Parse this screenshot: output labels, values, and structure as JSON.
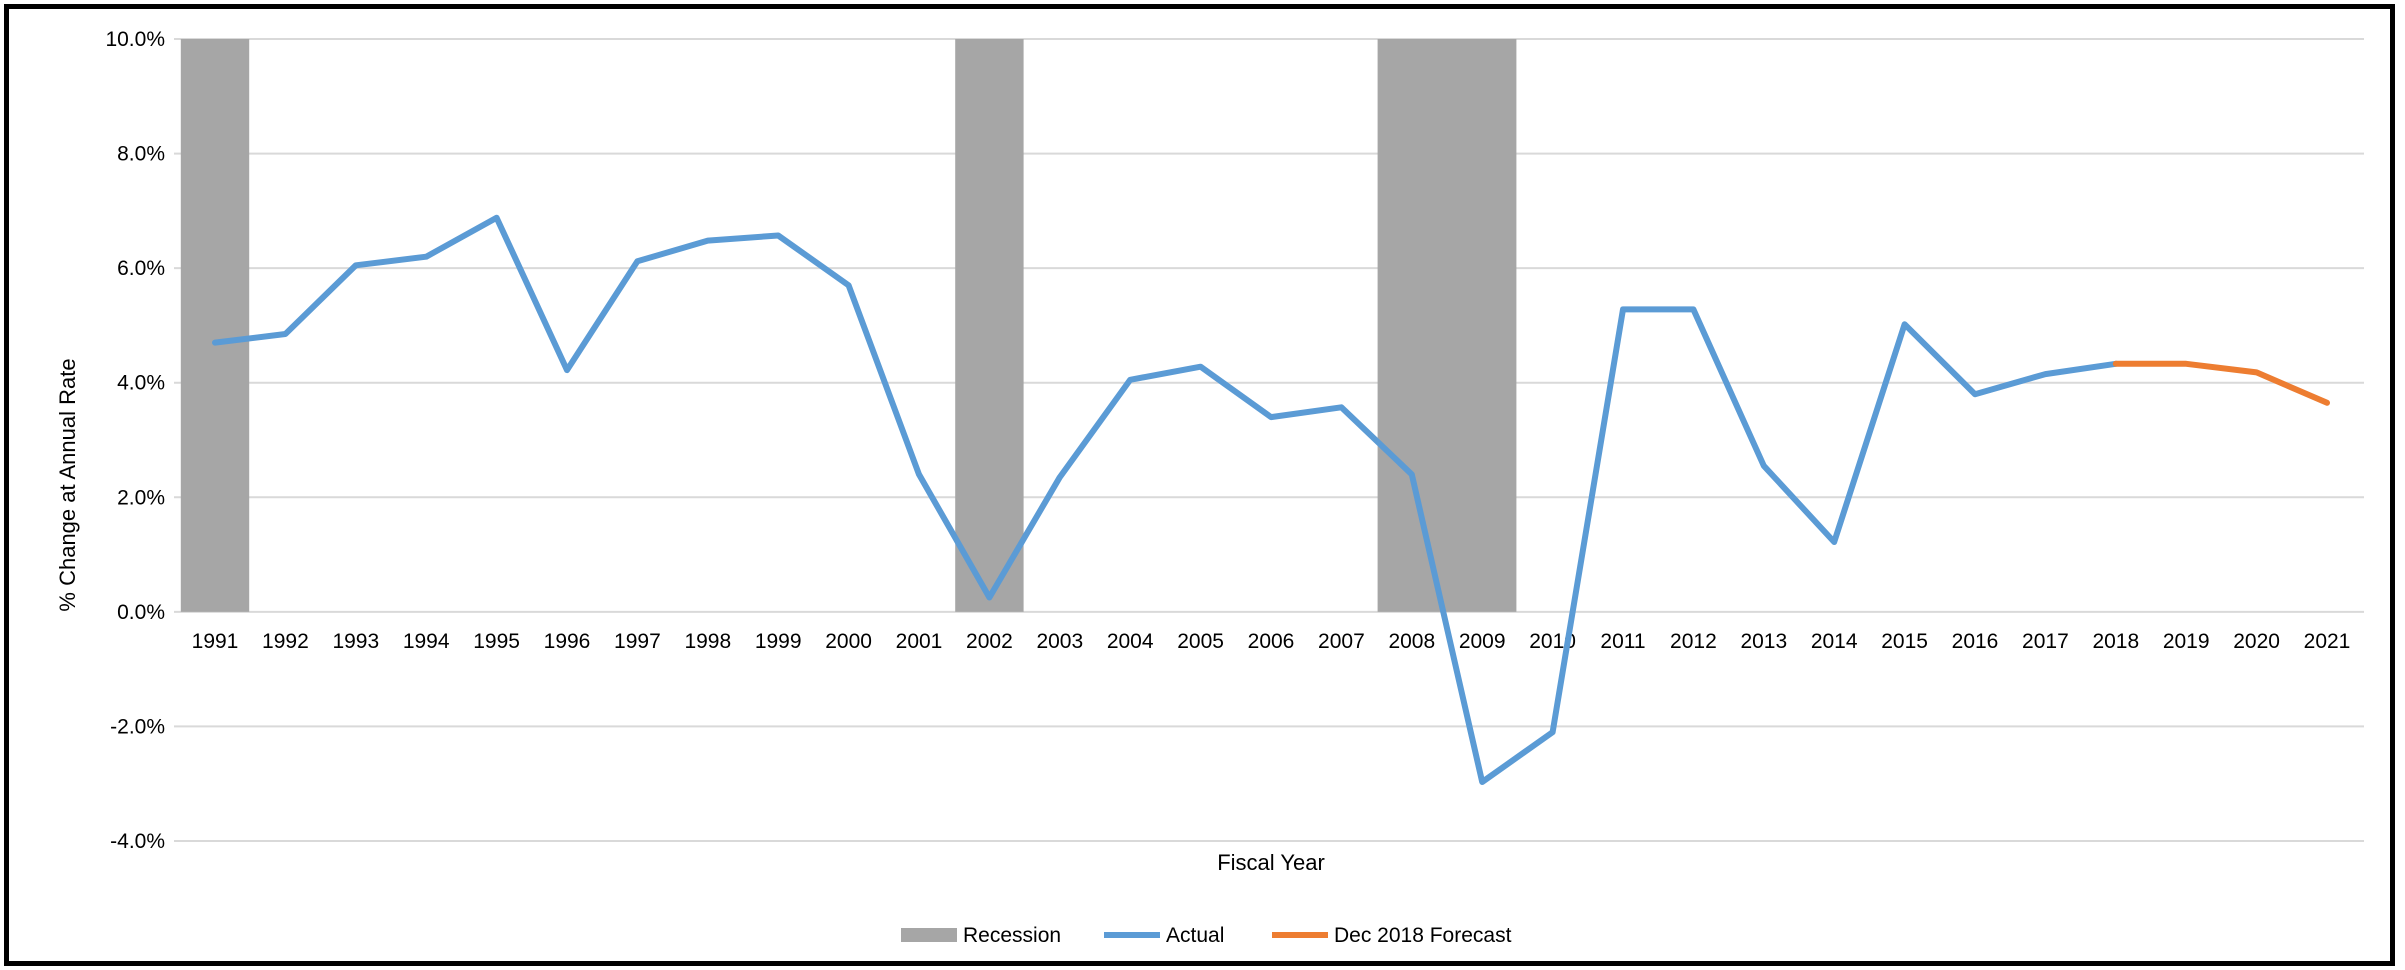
{
  "chart_data": {
    "type": "line",
    "title": "",
    "xlabel": "Fiscal Year",
    "ylabel": "% Change at Annual Rate",
    "ylim": [
      -4.0,
      10.0
    ],
    "y_tick_step": 2.0,
    "y_tick_labels": [
      "-4.0%",
      "-2.0%",
      "0.0%",
      "2.0%",
      "4.0%",
      "6.0%",
      "8.0%",
      "10.0%"
    ],
    "categories": [
      "1991",
      "1992",
      "1993",
      "1994",
      "1995",
      "1996",
      "1997",
      "1998",
      "1999",
      "2000",
      "2001",
      "2002",
      "2003",
      "2004",
      "2005",
      "2006",
      "2007",
      "2008",
      "2009",
      "2010",
      "2011",
      "2012",
      "2013",
      "2014",
      "2015",
      "2016",
      "2017",
      "2018",
      "2019",
      "2020",
      "2021"
    ],
    "grid": true,
    "legend_position": "bottom",
    "recession": {
      "name": "Recession",
      "color": "#a6a6a6",
      "periods": [
        {
          "start": "1991",
          "end": "1991"
        },
        {
          "start": "2002",
          "end": "2002"
        },
        {
          "start": "2008",
          "end": "2009"
        }
      ]
    },
    "series": [
      {
        "name": "Actual",
        "color": "#5b9bd5",
        "x": [
          "1991",
          "1992",
          "1993",
          "1994",
          "1995",
          "1996",
          "1997",
          "1998",
          "1999",
          "2000",
          "2001",
          "2002",
          "2003",
          "2004",
          "2005",
          "2006",
          "2007",
          "2008",
          "2009",
          "2010",
          "2011",
          "2012",
          "2013",
          "2014",
          "2015",
          "2016",
          "2017",
          "2018"
        ],
        "values": [
          4.7,
          4.85,
          6.05,
          6.2,
          6.88,
          4.22,
          6.12,
          6.48,
          6.57,
          5.7,
          2.4,
          0.25,
          2.35,
          4.05,
          4.28,
          3.4,
          3.57,
          2.4,
          -2.97,
          -2.1,
          5.28,
          5.28,
          2.55,
          1.22,
          5.02,
          3.8,
          4.15,
          4.33
        ]
      },
      {
        "name": "Dec 2018 Forecast",
        "color": "#ed7d31",
        "x": [
          "2018",
          "2019",
          "2020",
          "2021"
        ],
        "values": [
          4.33,
          4.33,
          4.18,
          3.65
        ]
      }
    ]
  }
}
